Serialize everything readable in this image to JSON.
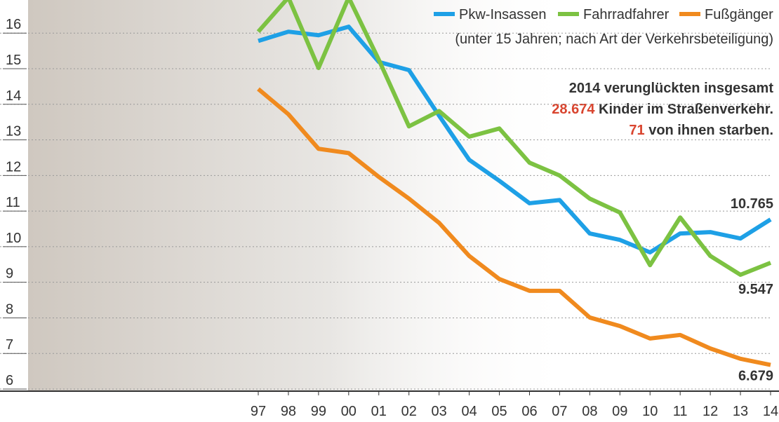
{
  "chart_data": {
    "type": "line",
    "subtitle": "(unter 15 Jahren; nach Art der Verkehrsbeteiligung)",
    "annotation": {
      "line1": "2014 verunglückten insgesamt",
      "number1": "28.674",
      "line2": " Kinder im Straßenverkehr.",
      "number2": "71",
      "line3": " von ihnen starben."
    },
    "categories": [
      "97",
      "98",
      "99",
      "00",
      "01",
      "02",
      "03",
      "04",
      "05",
      "06",
      "07",
      "08",
      "09",
      "10",
      "11",
      "12",
      "13",
      "14"
    ],
    "series": [
      {
        "name": "Pkw-Insassen",
        "color": "#1ea0e6",
        "values": [
          15.78,
          16.04,
          15.94,
          16.18,
          15.19,
          14.96,
          13.68,
          12.44,
          11.85,
          11.22,
          11.31,
          10.37,
          10.19,
          9.84,
          10.37,
          10.41,
          10.23,
          10.765
        ]
      },
      {
        "name": "Fahrradfahrer",
        "color": "#7cc242",
        "values": [
          16.04,
          17.0,
          15.02,
          17.0,
          15.25,
          13.38,
          13.81,
          13.09,
          13.32,
          12.36,
          12.0,
          11.35,
          10.96,
          9.48,
          10.82,
          9.74,
          9.21,
          9.547
        ]
      },
      {
        "name": "Fußgänger",
        "color": "#f08a1e",
        "values": [
          14.43,
          13.72,
          12.75,
          12.63,
          11.96,
          11.35,
          10.67,
          9.74,
          9.09,
          8.76,
          8.76,
          8.01,
          7.77,
          7.42,
          7.52,
          7.14,
          6.85,
          6.679
        ]
      }
    ],
    "ylim": [
      6,
      16.93
    ],
    "yticks": [
      6,
      7,
      8,
      9,
      10,
      11,
      12,
      13,
      14,
      15,
      16
    ],
    "grid": true
  }
}
